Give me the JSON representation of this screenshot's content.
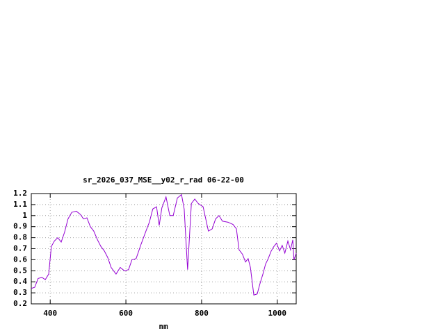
{
  "chart_data": {
    "type": "line",
    "title": "sr_2026_037_MSE__y02_r_rad 06-22-00",
    "x_label": "nm",
    "x": [
      350,
      359,
      368,
      378,
      387,
      396,
      403,
      411,
      420,
      429,
      438,
      447,
      457,
      469,
      480,
      488,
      497,
      506,
      515,
      525,
      534,
      543,
      552,
      561,
      574,
      585,
      596,
      607,
      616,
      627,
      640,
      653,
      662,
      671,
      681,
      688,
      695,
      706,
      716,
      725,
      736,
      747,
      754,
      763,
      773,
      782,
      791,
      804,
      818,
      828,
      837,
      846,
      855,
      870,
      883,
      892,
      899,
      908,
      916,
      923,
      929,
      938,
      947,
      954,
      962,
      969,
      976,
      984,
      991,
      998,
      1006,
      1013,
      1020,
      1028,
      1035,
      1041,
      1044,
      1050
    ],
    "series": [
      {
        "color": "#9400d3",
        "values": [
          0.34,
          0.35,
          0.43,
          0.44,
          0.42,
          0.47,
          0.72,
          0.77,
          0.8,
          0.76,
          0.85,
          0.97,
          1.03,
          1.04,
          1.01,
          0.97,
          0.98,
          0.9,
          0.86,
          0.78,
          0.72,
          0.68,
          0.62,
          0.53,
          0.47,
          0.53,
          0.5,
          0.51,
          0.6,
          0.61,
          0.74,
          0.86,
          0.94,
          1.06,
          1.08,
          0.91,
          1.07,
          1.17,
          1.0,
          1.0,
          1.16,
          1.19,
          1.06,
          0.51,
          1.11,
          1.15,
          1.11,
          1.08,
          0.86,
          0.88,
          0.97,
          1.0,
          0.95,
          0.94,
          0.92,
          0.88,
          0.69,
          0.65,
          0.58,
          0.61,
          0.53,
          0.28,
          0.29,
          0.38,
          0.47,
          0.56,
          0.61,
          0.68,
          0.72,
          0.75,
          0.68,
          0.73,
          0.66,
          0.77,
          0.69,
          0.78,
          0.6,
          0.66
        ]
      }
    ],
    "xlim": [
      350,
      1050
    ],
    "xticks": [
      400,
      600,
      800,
      1000
    ],
    "ylim": [
      0.2,
      1.2
    ],
    "yticks": [
      0.2,
      0.3,
      0.4,
      0.5,
      0.6,
      0.7,
      0.8,
      0.9,
      1,
      1.1,
      1.2
    ],
    "grid": true
  }
}
